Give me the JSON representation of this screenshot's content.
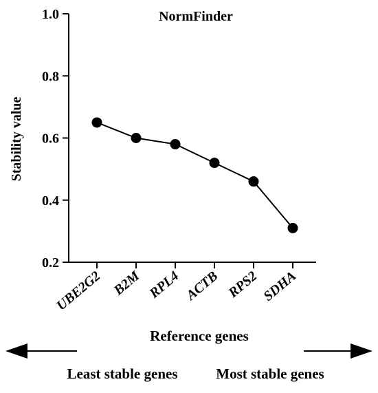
{
  "chart_data": {
    "type": "line",
    "title": "NormFinder",
    "xlabel": "Reference genes",
    "ylabel": "Stability value",
    "categories": [
      "UBE2G2",
      "B2M",
      "RPL4",
      "ACTB",
      "RPS2",
      "SDHA"
    ],
    "values": [
      0.65,
      0.6,
      0.58,
      0.52,
      0.46,
      0.31
    ],
    "ylim": [
      0.2,
      1.0
    ],
    "yticks": [
      "0.2",
      "0.4",
      "0.6",
      "0.8",
      "1.0"
    ],
    "grid": false,
    "legend": "none"
  },
  "annotations": {
    "left_label": "Least stable genes",
    "right_label": "Most stable genes"
  },
  "colors": {
    "line": "#000000",
    "marker": "#000000"
  }
}
